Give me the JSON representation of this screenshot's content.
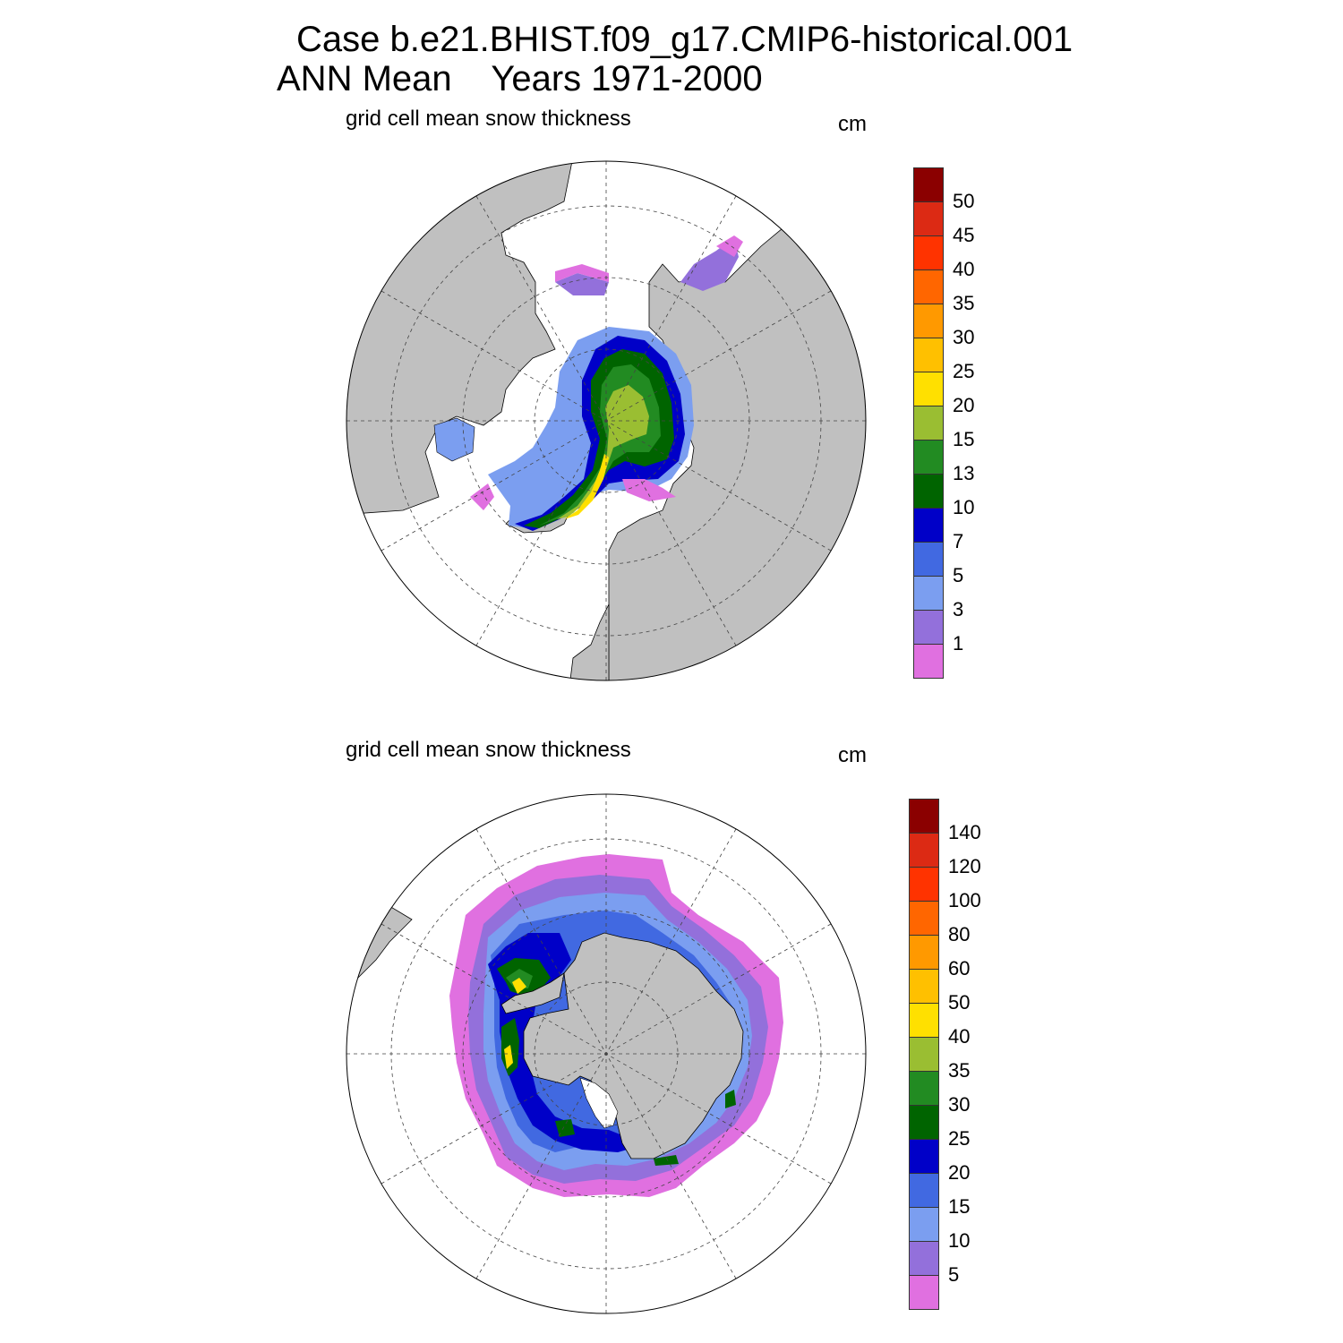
{
  "header": {
    "case_line": "Case b.e21.BHIST.f09_g17.CMIP6-historical.001",
    "period_line": "ANN Mean    Years 1971-2000"
  },
  "panels": [
    {
      "id": "nh",
      "subtitle": "grid cell mean snow thickness",
      "units": "cm",
      "hemisphere": "north",
      "colorbar": {
        "labels": [
          "50",
          "45",
          "40",
          "35",
          "30",
          "25",
          "20",
          "15",
          "13",
          "10",
          "7",
          "5",
          "3",
          "1"
        ],
        "colors": [
          "#8b0000",
          "#dc2a14",
          "#ff3300",
          "#ff6600",
          "#ff9900",
          "#ffc000",
          "#ffe000",
          "#9abe32",
          "#228b22",
          "#006400",
          "#0000c8",
          "#4169e1",
          "#7b9ef0",
          "#9370db",
          "#e070e0"
        ]
      }
    },
    {
      "id": "sh",
      "subtitle": "grid cell mean snow thickness",
      "units": "cm",
      "hemisphere": "south",
      "colorbar": {
        "labels": [
          "140",
          "120",
          "100",
          "80",
          "60",
          "50",
          "40",
          "35",
          "30",
          "25",
          "20",
          "15",
          "10",
          "5"
        ],
        "colors": [
          "#8b0000",
          "#dc2a14",
          "#ff3300",
          "#ff6600",
          "#ff9900",
          "#ffc000",
          "#ffe000",
          "#9abe32",
          "#228b22",
          "#006400",
          "#0000c8",
          "#4169e1",
          "#7b9ef0",
          "#9370db",
          "#e070e0"
        ]
      }
    }
  ],
  "map_style": {
    "land_color": "#c0c0c0",
    "ocean_color": "#ffffff",
    "grid_lines": "dashed"
  }
}
